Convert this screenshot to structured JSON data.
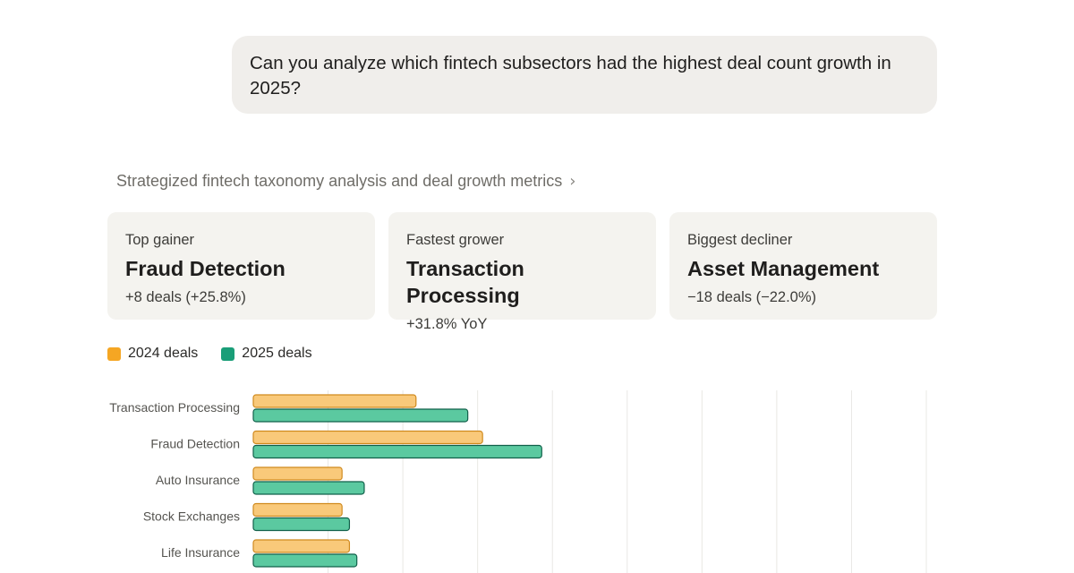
{
  "conversation": {
    "user_message": "Can you analyze which fintech subsectors had the highest deal count growth in 2025?",
    "thinking_summary": "Strategized fintech taxonomy analysis and deal growth metrics"
  },
  "cards": [
    {
      "label": "Top gainer",
      "value": "Fraud Detection",
      "sub": "+8 deals (+25.8%)"
    },
    {
      "label": "Fastest grower",
      "value": "Transaction Processing",
      "sub": "+31.8% YoY"
    },
    {
      "label": "Biggest decliner",
      "value": "Asset Management",
      "sub": "−18 deals (−22.0%)"
    }
  ],
  "colors": {
    "series_2024": "#f9c97a",
    "series_2024_border": "#d08a1e",
    "series_2025": "#5bc9a0",
    "series_2025_border": "#11604a",
    "legend_2024": "#f5a623",
    "legend_2025": "#1a9e78"
  },
  "chart_data": {
    "type": "bar",
    "orientation": "horizontal",
    "categories": [
      "Transaction Processing",
      "Fraud Detection",
      "Auto Insurance",
      "Stock Exchanges",
      "Life Insurance"
    ],
    "series": [
      {
        "name": "2024 deals",
        "values": [
          22,
          31,
          12,
          12,
          13
        ]
      },
      {
        "name": "2025 deals",
        "values": [
          29,
          39,
          15,
          13,
          14
        ]
      }
    ],
    "xlim": [
      0,
      91
    ],
    "grid": true,
    "legend_position": "top-left"
  }
}
